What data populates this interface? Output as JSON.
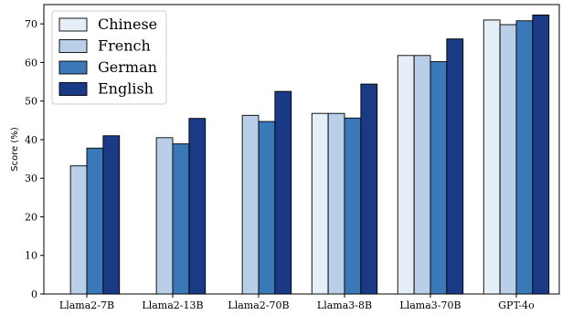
{
  "chart_data": {
    "type": "bar",
    "categories": [
      "Llama2-7B",
      "Llama2-13B",
      "Llama2-70B",
      "Llama3-8B",
      "Llama3-70B",
      "GPT-4o"
    ],
    "series": [
      {
        "name": "Chinese",
        "color": "#e6eef8",
        "values": [
          0,
          0,
          0,
          46.8,
          61.8,
          71.0
        ]
      },
      {
        "name": "French",
        "color": "#b9cfe7",
        "values": [
          33.2,
          40.5,
          46.3,
          46.8,
          61.8,
          69.8
        ]
      },
      {
        "name": "German",
        "color": "#3a78b8",
        "values": [
          37.8,
          38.9,
          44.7,
          45.6,
          60.2,
          70.8
        ]
      },
      {
        "name": "English",
        "color": "#1a3a86",
        "values": [
          41.0,
          45.5,
          52.5,
          54.4,
          66.1,
          72.3
        ]
      }
    ],
    "ylabel": "Score (%)",
    "xlabel": "",
    "ylim": [
      0,
      75
    ],
    "yticks": [
      0,
      10,
      20,
      30,
      40,
      50,
      60,
      70
    ],
    "legend_position": "top-left",
    "grid": false
  }
}
